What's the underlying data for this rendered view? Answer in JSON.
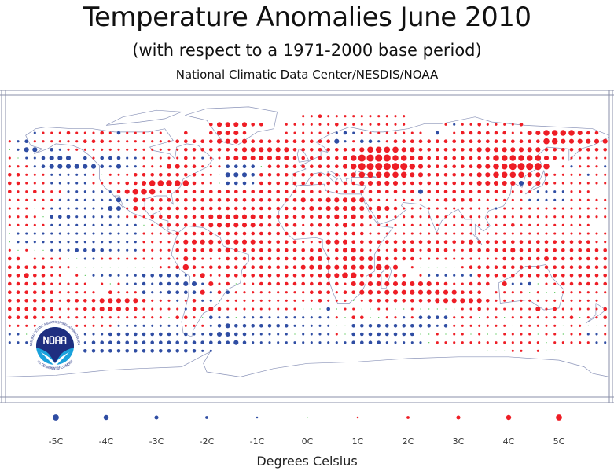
{
  "header": {
    "title": "Temperature Anomalies June 2010",
    "subtitle": "(with respect to a 1971-2000 base period)",
    "source": "National Climatic Data Center/NESDIS/NOAA"
  },
  "colors": {
    "warm": "#ee1d25",
    "cold": "#2f4da3",
    "zero": "#33bb33",
    "coast": "#8a93b8",
    "frame": "#8a8fa8"
  },
  "grid": {
    "lon_start": -177.5,
    "lat_start": 77.5,
    "step_deg": 5,
    "encoding": ". = no data, z = 0C, 1-5 = +1..+5C, a-e = -1..-5C",
    "anomaly_rows": [
      "...................................1121111111111........................",
      "........................2333322..111111211111111....1a11211112..........",
      "...a111211121b11111..2..23332....111111aba11111111.b.122222211334444322",
      "1ab111111222111111112222233332222222222ca1bba1222222222222222222443333333",
      "zacc ba111111111111112222222333333222222223444433222222233333333222222221",
      "1zaabccc b1bbbaa1111121a1123333333222222345555443322222222444444321111111",
      "111abccccccbacaa1113322111bbbbz2222222223455555543222222334455554 1a111a11",
      "22111aaaaa1z1112222222211zcccb222222222223444444332222223344443321111a111",
      "22111aaaaa111122344444211zbbba2222222222223333322222222233333c33211111111",
      "2112111aaaaaa234441222222222222222222111222222222c2222222222111aaaa111",
      "111111aaaaaaaca32222222222222222222322333332111111112222111111aaaaa11111",
      "111z1aaaaaaacc13222222222222222222223233333233211111111111a1111111111111",
      "1111zbbbaaaaaa111222222233333322222222232322211111111111111111111111111111",
      "11111aaaaaaaaaaaz12222223333332222212222322111111111111111112111111111",
      "zaaaaaaaaaaaaaaa11112222222222222222222222211111111111111111111111111111",
      "zaaaaaaaaaaaaaaa11112333323333222221113332222222222222232222222222222211",
      "1z1zzaaabbbbaaaa111122222232222222222212332111222122211222223222222222221",
      "22 1111zzaa1111111111321112222222222332233333222211111111112222232222222222",
      "22222111zzzzzzzzzz11242122222222222333333333433 1zzzzz1222222222222222222",
      "2232211 1zaaaaaabbbbba13112222222222223344222222 1aaaaaa222222222222222223",
      "2222211111 1z1aababbbcca312z112222222222133333333332211222 3aabz112222222222",
      "22222211111 2111baabbbb3a2b111111111222122332333333333222 1111z1zz11111122",
      "22222212222333332111a12aaz111111111112111z12222222233333321111111111111",
      "222222111223332211111a2232111111111zzzbz11zz11zz1zzzzz112111111312111112",
      "2222111111111111111z221zbaazaaaaaaaaaaa1z22zz11a1bbbb111z11z11111112z112",
      "1111111111111aaaaaaaa111abcbbbbbbbaaaaazzbbbbbbbbbbab1111111z11111z11zz1",
      "aazaaaaaaaaabbbbbbbbabaabccbbaaaaazaaaa1zbbbbbbbbzz1z11z1zz1111z11z11aa1",
      "aaaaaaaaaabbbbbbbbbbbbbbbbbcbaaaaaaaaaaaabbbbaaaaaz1111111111111z11111aa",
      ".........bbbbbbbbbbbbbbaa................................zzz11.1zz......"
    ]
  },
  "legend": {
    "items": [
      {
        "value": -5,
        "label": "-5C"
      },
      {
        "value": -4,
        "label": "-4C"
      },
      {
        "value": -3,
        "label": "-3C"
      },
      {
        "value": -2,
        "label": "-2C"
      },
      {
        "value": -1,
        "label": "-1C"
      },
      {
        "value": 0,
        "label": "0C"
      },
      {
        "value": 1,
        "label": "1C"
      },
      {
        "value": 2,
        "label": "2C"
      },
      {
        "value": 3,
        "label": "3C"
      },
      {
        "value": 4,
        "label": "4C"
      },
      {
        "value": 5,
        "label": "5C"
      }
    ],
    "unit_label": "Degrees Celsius"
  },
  "logo": {
    "center_text": "NOAA",
    "ring_top": "NATIONAL OCEANIC AND ATMOSPHERIC ADMINISTRATION",
    "ring_bottom": "U.S. DEPARTMENT OF COMMERCE"
  }
}
